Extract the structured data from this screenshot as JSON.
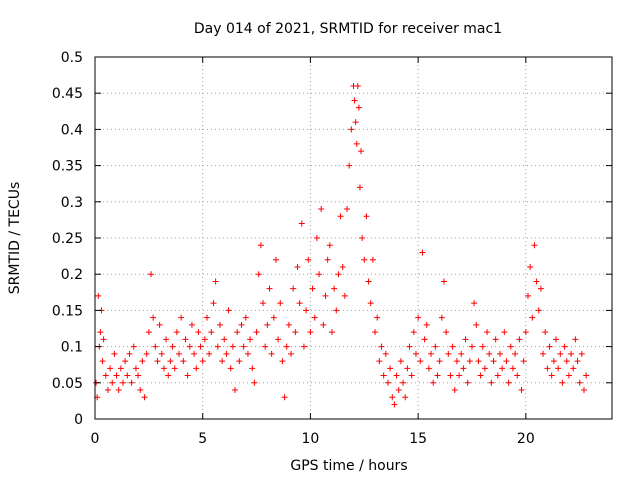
{
  "chart_data": {
    "type": "scatter",
    "title": "Day 014 of 2021, SRMTID for receiver mac1",
    "xlabel": "GPS time / hours",
    "ylabel": "SRMTID / TECUs",
    "xlim": [
      0,
      24
    ],
    "ylim": [
      0,
      0.5
    ],
    "xticks": [
      0,
      5,
      10,
      15,
      20
    ],
    "xtick_labels": [
      "0",
      "5",
      "10",
      "15",
      "20"
    ],
    "yticks": [
      0,
      0.05,
      0.1,
      0.15,
      0.2,
      0.25,
      0.3,
      0.35,
      0.4,
      0.45,
      0.5
    ],
    "ytick_labels": [
      "0",
      "0.05",
      "0.1",
      "0.15",
      "0.2",
      "0.25",
      "0.3",
      "0.35",
      "0.4",
      "0.45",
      "0.5"
    ],
    "grid": true,
    "marker": "+",
    "color": "#ff0000",
    "series": [
      {
        "name": "mac1",
        "points": [
          [
            0.05,
            0.05
          ],
          [
            0.1,
            0.03
          ],
          [
            0.15,
            0.17
          ],
          [
            0.2,
            0.1
          ],
          [
            0.25,
            0.12
          ],
          [
            0.3,
            0.15
          ],
          [
            0.35,
            0.08
          ],
          [
            0.4,
            0.11
          ],
          [
            0.5,
            0.06
          ],
          [
            0.6,
            0.04
          ],
          [
            0.7,
            0.07
          ],
          [
            0.8,
            0.05
          ],
          [
            0.9,
            0.09
          ],
          [
            1.0,
            0.06
          ],
          [
            1.1,
            0.04
          ],
          [
            1.2,
            0.07
          ],
          [
            1.3,
            0.05
          ],
          [
            1.4,
            0.08
          ],
          [
            1.5,
            0.06
          ],
          [
            1.6,
            0.09
          ],
          [
            1.7,
            0.05
          ],
          [
            1.8,
            0.1
          ],
          [
            1.9,
            0.07
          ],
          [
            2.0,
            0.06
          ],
          [
            2.1,
            0.04
          ],
          [
            2.2,
            0.08
          ],
          [
            2.3,
            0.03
          ],
          [
            2.4,
            0.09
          ],
          [
            2.5,
            0.12
          ],
          [
            2.6,
            0.2
          ],
          [
            2.7,
            0.14
          ],
          [
            2.8,
            0.1
          ],
          [
            2.9,
            0.08
          ],
          [
            3.0,
            0.13
          ],
          [
            3.1,
            0.09
          ],
          [
            3.2,
            0.07
          ],
          [
            3.3,
            0.11
          ],
          [
            3.4,
            0.06
          ],
          [
            3.5,
            0.08
          ],
          [
            3.6,
            0.1
          ],
          [
            3.7,
            0.07
          ],
          [
            3.8,
            0.12
          ],
          [
            3.9,
            0.09
          ],
          [
            4.0,
            0.14
          ],
          [
            4.1,
            0.08
          ],
          [
            4.2,
            0.11
          ],
          [
            4.3,
            0.06
          ],
          [
            4.4,
            0.1
          ],
          [
            4.5,
            0.13
          ],
          [
            4.6,
            0.09
          ],
          [
            4.7,
            0.07
          ],
          [
            4.8,
            0.12
          ],
          [
            4.9,
            0.1
          ],
          [
            5.0,
            0.08
          ],
          [
            5.1,
            0.11
          ],
          [
            5.2,
            0.14
          ],
          [
            5.3,
            0.09
          ],
          [
            5.4,
            0.12
          ],
          [
            5.5,
            0.16
          ],
          [
            5.6,
            0.19
          ],
          [
            5.7,
            0.1
          ],
          [
            5.8,
            0.13
          ],
          [
            5.9,
            0.08
          ],
          [
            6.0,
            0.11
          ],
          [
            6.1,
            0.09
          ],
          [
            6.2,
            0.15
          ],
          [
            6.3,
            0.07
          ],
          [
            6.4,
            0.1
          ],
          [
            6.5,
            0.04
          ],
          [
            6.6,
            0.12
          ],
          [
            6.7,
            0.08
          ],
          [
            6.8,
            0.13
          ],
          [
            6.9,
            0.1
          ],
          [
            7.0,
            0.14
          ],
          [
            7.1,
            0.09
          ],
          [
            7.2,
            0.11
          ],
          [
            7.3,
            0.07
          ],
          [
            7.4,
            0.05
          ],
          [
            7.5,
            0.12
          ],
          [
            7.6,
            0.2
          ],
          [
            7.7,
            0.24
          ],
          [
            7.8,
            0.16
          ],
          [
            7.9,
            0.1
          ],
          [
            8.0,
            0.13
          ],
          [
            8.1,
            0.18
          ],
          [
            8.2,
            0.09
          ],
          [
            8.3,
            0.14
          ],
          [
            8.4,
            0.22
          ],
          [
            8.5,
            0.11
          ],
          [
            8.6,
            0.16
          ],
          [
            8.7,
            0.08
          ],
          [
            8.8,
            0.03
          ],
          [
            8.9,
            0.1
          ],
          [
            9.0,
            0.13
          ],
          [
            9.1,
            0.09
          ],
          [
            9.2,
            0.18
          ],
          [
            9.3,
            0.12
          ],
          [
            9.4,
            0.21
          ],
          [
            9.5,
            0.16
          ],
          [
            9.6,
            0.27
          ],
          [
            9.7,
            0.1
          ],
          [
            9.8,
            0.15
          ],
          [
            9.9,
            0.22
          ],
          [
            10.0,
            0.12
          ],
          [
            10.1,
            0.18
          ],
          [
            10.2,
            0.14
          ],
          [
            10.3,
            0.25
          ],
          [
            10.4,
            0.2
          ],
          [
            10.5,
            0.29
          ],
          [
            10.6,
            0.13
          ],
          [
            10.7,
            0.17
          ],
          [
            10.8,
            0.22
          ],
          [
            10.9,
            0.24
          ],
          [
            11.0,
            0.12
          ],
          [
            11.1,
            0.18
          ],
          [
            11.2,
            0.15
          ],
          [
            11.3,
            0.2
          ],
          [
            11.4,
            0.28
          ],
          [
            11.5,
            0.21
          ],
          [
            11.6,
            0.17
          ],
          [
            11.7,
            0.29
          ],
          [
            11.8,
            0.35
          ],
          [
            11.9,
            0.4
          ],
          [
            12.0,
            0.46
          ],
          [
            12.05,
            0.44
          ],
          [
            12.1,
            0.41
          ],
          [
            12.15,
            0.38
          ],
          [
            12.2,
            0.46
          ],
          [
            12.25,
            0.43
          ],
          [
            12.3,
            0.32
          ],
          [
            12.35,
            0.37
          ],
          [
            12.4,
            0.25
          ],
          [
            12.5,
            0.22
          ],
          [
            12.6,
            0.28
          ],
          [
            12.7,
            0.19
          ],
          [
            12.8,
            0.16
          ],
          [
            12.9,
            0.22
          ],
          [
            13.0,
            0.12
          ],
          [
            13.1,
            0.14
          ],
          [
            13.2,
            0.08
          ],
          [
            13.3,
            0.1
          ],
          [
            13.4,
            0.06
          ],
          [
            13.5,
            0.09
          ],
          [
            13.6,
            0.05
          ],
          [
            13.7,
            0.07
          ],
          [
            13.8,
            0.03
          ],
          [
            13.9,
            0.02
          ],
          [
            14.0,
            0.06
          ],
          [
            14.1,
            0.04
          ],
          [
            14.2,
            0.08
          ],
          [
            14.3,
            0.05
          ],
          [
            14.4,
            0.03
          ],
          [
            14.5,
            0.07
          ],
          [
            14.6,
            0.1
          ],
          [
            14.7,
            0.06
          ],
          [
            14.8,
            0.12
          ],
          [
            14.9,
            0.09
          ],
          [
            15.0,
            0.14
          ],
          [
            15.1,
            0.08
          ],
          [
            15.2,
            0.23
          ],
          [
            15.3,
            0.11
          ],
          [
            15.4,
            0.13
          ],
          [
            15.5,
            0.07
          ],
          [
            15.6,
            0.09
          ],
          [
            15.7,
            0.05
          ],
          [
            15.8,
            0.1
          ],
          [
            15.9,
            0.06
          ],
          [
            16.0,
            0.08
          ],
          [
            16.1,
            0.14
          ],
          [
            16.2,
            0.19
          ],
          [
            16.3,
            0.12
          ],
          [
            16.4,
            0.09
          ],
          [
            16.5,
            0.06
          ],
          [
            16.6,
            0.1
          ],
          [
            16.7,
            0.04
          ],
          [
            16.8,
            0.08
          ],
          [
            16.9,
            0.06
          ],
          [
            17.0,
            0.09
          ],
          [
            17.1,
            0.07
          ],
          [
            17.2,
            0.11
          ],
          [
            17.3,
            0.05
          ],
          [
            17.4,
            0.08
          ],
          [
            17.5,
            0.1
          ],
          [
            17.6,
            0.16
          ],
          [
            17.7,
            0.13
          ],
          [
            17.8,
            0.08
          ],
          [
            17.9,
            0.06
          ],
          [
            18.0,
            0.1
          ],
          [
            18.1,
            0.07
          ],
          [
            18.2,
            0.12
          ],
          [
            18.3,
            0.09
          ],
          [
            18.4,
            0.05
          ],
          [
            18.5,
            0.08
          ],
          [
            18.6,
            0.11
          ],
          [
            18.7,
            0.06
          ],
          [
            18.8,
            0.09
          ],
          [
            18.9,
            0.07
          ],
          [
            19.0,
            0.12
          ],
          [
            19.1,
            0.08
          ],
          [
            19.2,
            0.05
          ],
          [
            19.3,
            0.1
          ],
          [
            19.4,
            0.07
          ],
          [
            19.5,
            0.09
          ],
          [
            19.6,
            0.06
          ],
          [
            19.7,
            0.11
          ],
          [
            19.8,
            0.04
          ],
          [
            19.9,
            0.08
          ],
          [
            20.0,
            0.12
          ],
          [
            20.1,
            0.17
          ],
          [
            20.2,
            0.21
          ],
          [
            20.3,
            0.14
          ],
          [
            20.4,
            0.24
          ],
          [
            20.5,
            0.19
          ],
          [
            20.6,
            0.15
          ],
          [
            20.7,
            0.18
          ],
          [
            20.8,
            0.09
          ],
          [
            20.9,
            0.12
          ],
          [
            21.0,
            0.07
          ],
          [
            21.1,
            0.1
          ],
          [
            21.2,
            0.06
          ],
          [
            21.3,
            0.08
          ],
          [
            21.4,
            0.11
          ],
          [
            21.5,
            0.07
          ],
          [
            21.6,
            0.09
          ],
          [
            21.7,
            0.05
          ],
          [
            21.8,
            0.1
          ],
          [
            21.9,
            0.08
          ],
          [
            22.0,
            0.06
          ],
          [
            22.1,
            0.09
          ],
          [
            22.2,
            0.07
          ],
          [
            22.3,
            0.11
          ],
          [
            22.4,
            0.08
          ],
          [
            22.5,
            0.05
          ],
          [
            22.6,
            0.09
          ],
          [
            22.7,
            0.04
          ],
          [
            22.8,
            0.06
          ]
        ]
      }
    ]
  }
}
